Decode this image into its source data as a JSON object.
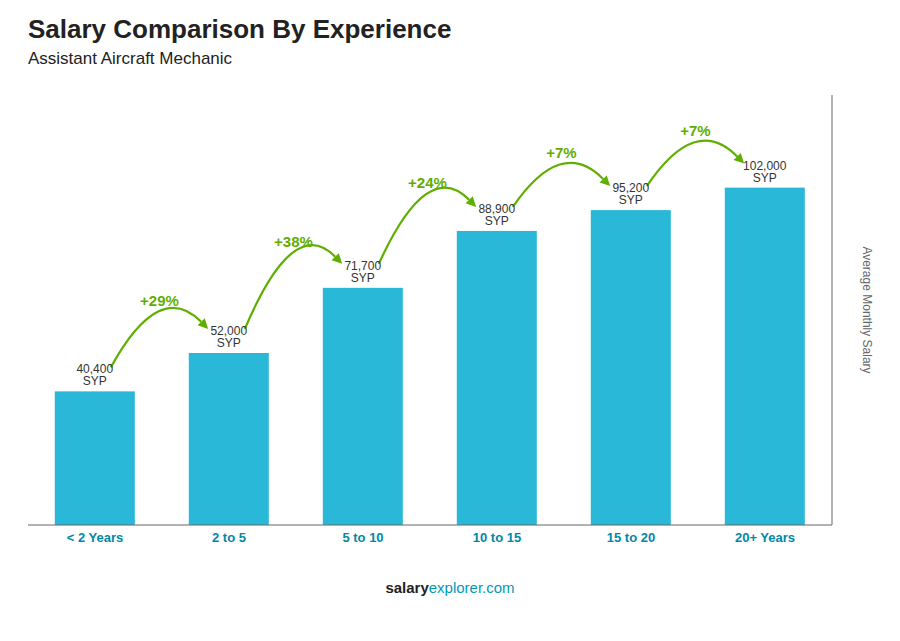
{
  "chart_data": {
    "type": "bar",
    "title": "Salary Comparison By Experience",
    "subtitle": "Assistant Aircraft Mechanic",
    "ylabel": "Average Monthly Salary",
    "categories": [
      "< 2 Years",
      "2 to 5",
      "5 to 10",
      "10 to 15",
      "15 to 20",
      "20+ Years"
    ],
    "values": [
      40400,
      52000,
      71700,
      88900,
      95200,
      102000
    ],
    "value_labels": [
      "40,400 SYP",
      "52,000 SYP",
      "71,700 SYP",
      "88,900 SYP",
      "95,200 SYP",
      "102,000 SYP"
    ],
    "data_labels": true,
    "annotations": [
      "+29%",
      "+38%",
      "+24%",
      "+7%",
      "+7%"
    ],
    "footer": [
      "salary",
      "explorer.com"
    ],
    "color": "#29b8d8",
    "ylim": [
      0,
      130000
    ],
    "tick_labels": "x",
    "grid": false
  }
}
